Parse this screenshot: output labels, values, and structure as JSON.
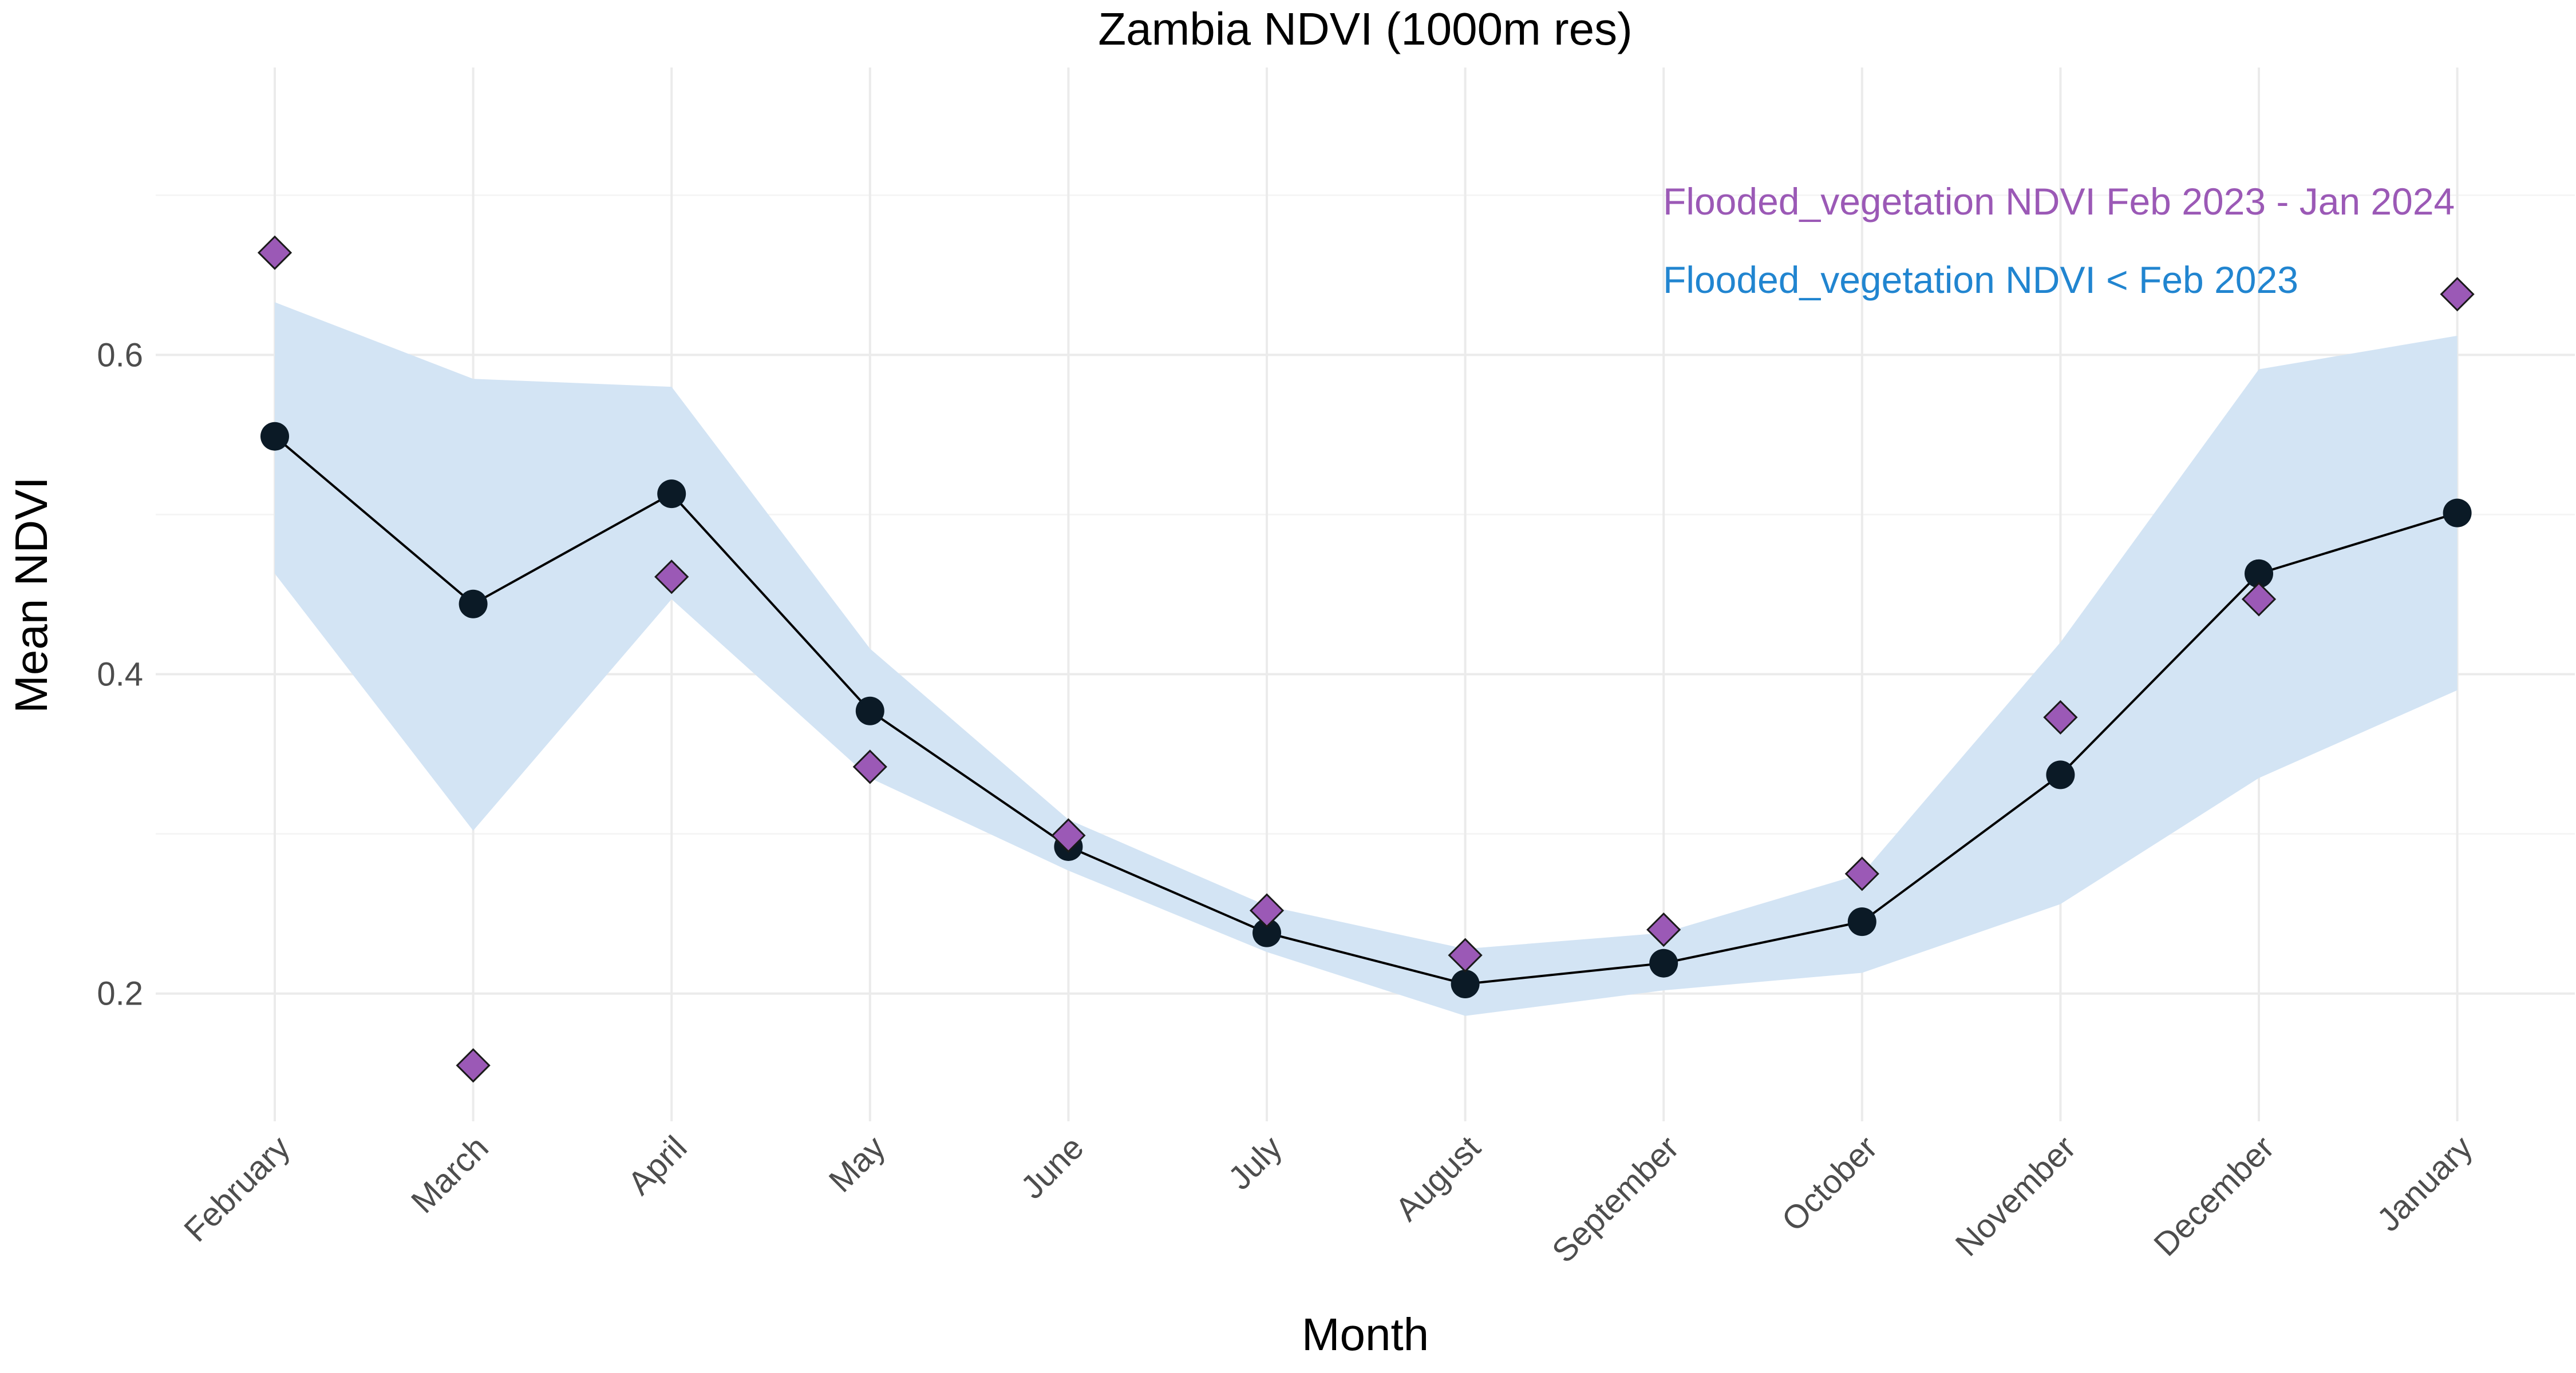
{
  "chart_data": {
    "type": "line",
    "title": "Zambia NDVI (1000m res)",
    "xlabel": "Month",
    "ylabel": "Mean NDVI",
    "categories": [
      "February",
      "March",
      "April",
      "May",
      "June",
      "July",
      "August",
      "September",
      "October",
      "November",
      "December",
      "January"
    ],
    "ylim": [
      0.12,
      0.78
    ],
    "yticks": [
      0.2,
      0.4,
      0.6
    ],
    "ytick_labels": [
      "0.2",
      "0.4",
      "0.6"
    ],
    "grid": true,
    "legend_position": "top-right",
    "series": [
      {
        "name": "Flooded_vegetation NDVI < Feb 2023",
        "kind": "line",
        "color": "#2185d0",
        "values": [
          0.549,
          0.444,
          0.513,
          0.377,
          0.292,
          0.238,
          0.206,
          0.219,
          0.245,
          0.337,
          0.463,
          0.501
        ],
        "band_lower": [
          0.463,
          0.302,
          0.447,
          0.335,
          0.277,
          0.226,
          0.186,
          0.202,
          0.213,
          0.256,
          0.335,
          0.39
        ],
        "band_upper": [
          0.633,
          0.585,
          0.58,
          0.416,
          0.309,
          0.255,
          0.228,
          0.238,
          0.275,
          0.42,
          0.591,
          0.612
        ]
      },
      {
        "name": "Flooded_vegetation NDVI Feb 2023 - Jan 2024",
        "kind": "points",
        "color": "#9b59b6",
        "values": [
          0.664,
          0.155,
          0.461,
          0.342,
          0.299,
          0.252,
          0.224,
          0.24,
          0.275,
          0.373,
          0.447,
          0.638
        ]
      }
    ]
  },
  "colors": {
    "band": "#d3e4f4",
    "line": "#000000",
    "circle": "#0b1a26",
    "diamond": "#9b59b6",
    "grid_major": "#ebebeb",
    "grid_minor": "#f5f5f5"
  }
}
